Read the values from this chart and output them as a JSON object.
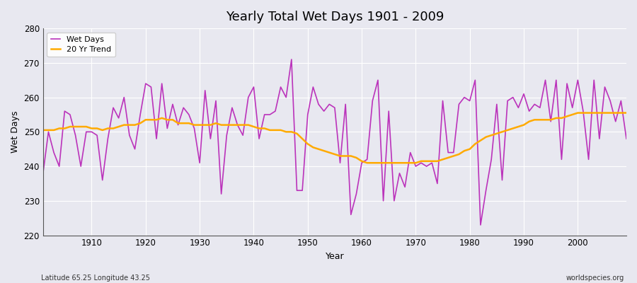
{
  "title": "Yearly Total Wet Days 1901 - 2009",
  "xlabel": "Year",
  "ylabel": "Wet Days",
  "xlim": [
    1901,
    2009
  ],
  "ylim": [
    220,
    280
  ],
  "yticks": [
    220,
    230,
    240,
    250,
    260,
    270,
    280
  ],
  "xticks": [
    1910,
    1920,
    1930,
    1940,
    1950,
    1960,
    1970,
    1980,
    1990,
    2000
  ],
  "bg_color": "#e8e8f0",
  "grid_color": "#ffffff",
  "line_color": "#bb33bb",
  "trend_color": "#ffaa00",
  "footnote_left": "Latitude 65.25 Longitude 43.25",
  "footnote_right": "worldspecies.org",
  "legend_labels": [
    "Wet Days",
    "20 Yr Trend"
  ],
  "years": [
    1901,
    1902,
    1903,
    1904,
    1905,
    1906,
    1907,
    1908,
    1909,
    1910,
    1911,
    1912,
    1913,
    1914,
    1915,
    1916,
    1917,
    1918,
    1919,
    1920,
    1921,
    1922,
    1923,
    1924,
    1925,
    1926,
    1927,
    1928,
    1929,
    1930,
    1931,
    1932,
    1933,
    1934,
    1935,
    1936,
    1937,
    1938,
    1939,
    1940,
    1941,
    1942,
    1943,
    1944,
    1945,
    1946,
    1947,
    1948,
    1949,
    1950,
    1951,
    1952,
    1953,
    1954,
    1955,
    1956,
    1957,
    1958,
    1959,
    1960,
    1961,
    1962,
    1963,
    1964,
    1965,
    1966,
    1967,
    1968,
    1969,
    1970,
    1971,
    1972,
    1973,
    1974,
    1975,
    1976,
    1977,
    1978,
    1979,
    1980,
    1981,
    1982,
    1983,
    1984,
    1985,
    1986,
    1987,
    1988,
    1989,
    1990,
    1991,
    1992,
    1993,
    1994,
    1995,
    1996,
    1997,
    1998,
    1999,
    2000,
    2001,
    2002,
    2003,
    2004,
    2005,
    2006,
    2007,
    2008,
    2009
  ],
  "wet_days": [
    238,
    250,
    244,
    240,
    256,
    255,
    249,
    240,
    250,
    250,
    249,
    236,
    248,
    257,
    254,
    260,
    249,
    245,
    255,
    264,
    263,
    248,
    264,
    251,
    258,
    252,
    257,
    255,
    251,
    241,
    262,
    248,
    259,
    232,
    249,
    257,
    252,
    249,
    260,
    263,
    248,
    255,
    255,
    256,
    263,
    260,
    271,
    233,
    233,
    255,
    263,
    258,
    256,
    258,
    257,
    241,
    258,
    226,
    232,
    241,
    242,
    259,
    265,
    230,
    256,
    230,
    238,
    234,
    244,
    240,
    241,
    240,
    241,
    235,
    259,
    244,
    244,
    258,
    260,
    259,
    265,
    223,
    233,
    242,
    258,
    236,
    259,
    260,
    257,
    261,
    256,
    258,
    257,
    265,
    253,
    265,
    242,
    264,
    257,
    265,
    256,
    242,
    265,
    248,
    263,
    259,
    253,
    259,
    248
  ],
  "trend": [
    250.5,
    250.5,
    250.5,
    251.0,
    251.0,
    251.5,
    251.5,
    251.5,
    251.5,
    251.0,
    251.0,
    250.5,
    251.0,
    251.0,
    251.5,
    252.0,
    252.0,
    252.0,
    252.5,
    253.5,
    253.5,
    253.5,
    254.0,
    253.5,
    253.5,
    252.5,
    252.5,
    252.5,
    252.0,
    252.0,
    252.0,
    252.0,
    252.5,
    252.0,
    252.0,
    252.0,
    252.0,
    252.0,
    252.0,
    251.5,
    251.0,
    251.0,
    250.5,
    250.5,
    250.5,
    250.0,
    250.0,
    249.5,
    248.0,
    246.5,
    245.5,
    245.0,
    244.5,
    244.0,
    243.5,
    243.0,
    243.0,
    243.0,
    242.5,
    241.5,
    241.0,
    241.0,
    241.0,
    241.0,
    241.0,
    241.0,
    241.0,
    241.0,
    241.0,
    241.0,
    241.5,
    241.5,
    241.5,
    241.5,
    242.0,
    242.5,
    243.0,
    243.5,
    244.5,
    245.0,
    246.5,
    247.5,
    248.5,
    249.0,
    249.5,
    250.0,
    250.5,
    251.0,
    251.5,
    252.0,
    253.0,
    253.5,
    253.5,
    253.5,
    253.5,
    254.0,
    254.0,
    254.5,
    255.0,
    255.5,
    255.5,
    255.5,
    255.5,
    255.5,
    255.5,
    255.5,
    255.5,
    255.5,
    255.5
  ]
}
